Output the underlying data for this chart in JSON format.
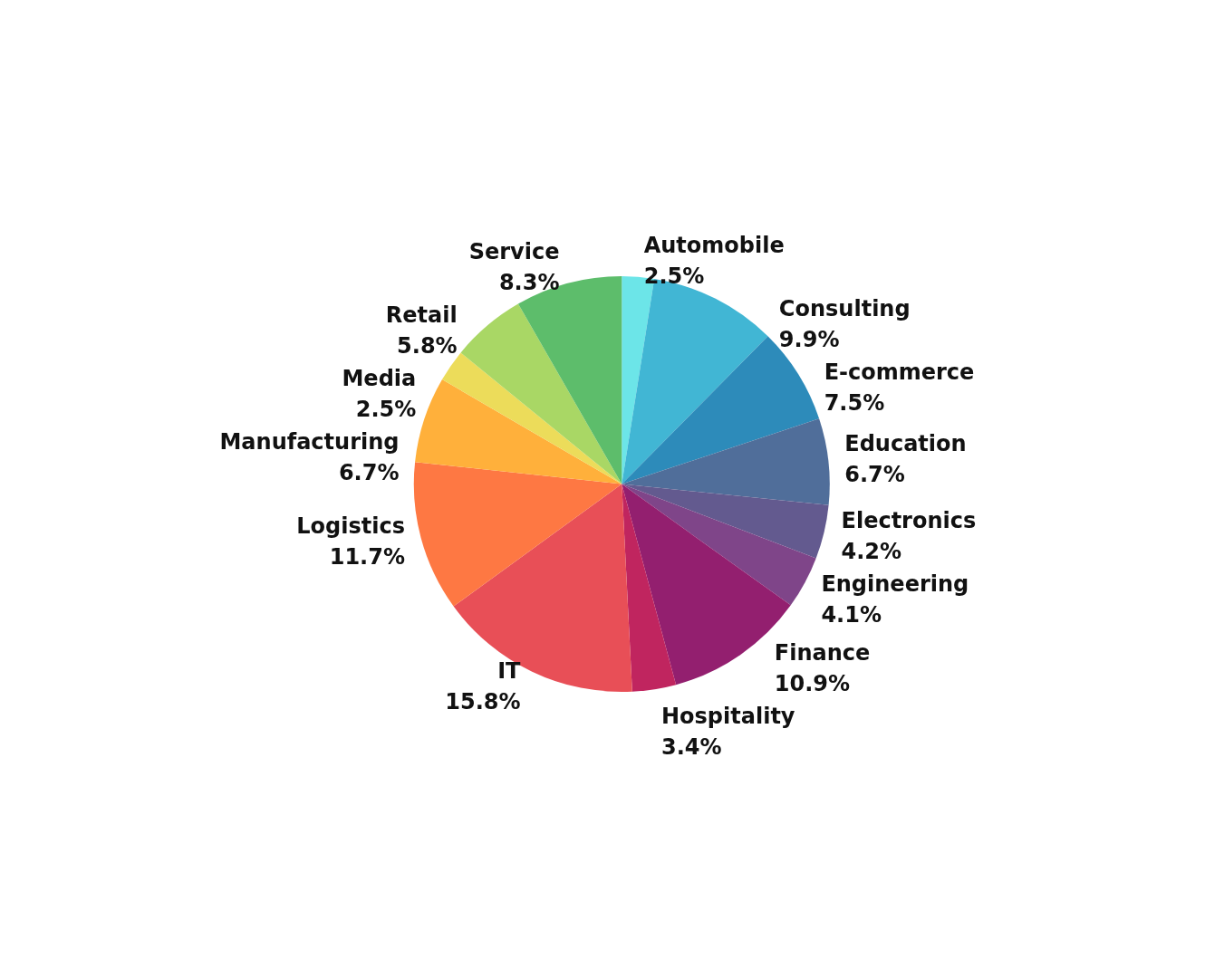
{
  "chart_data": {
    "type": "pie",
    "categories": [
      "Automobile",
      "Consulting",
      "E-commerce",
      "Education",
      "Electronics",
      "Engineering",
      "Finance",
      "Hospitality",
      "IT",
      "Logistics",
      "Manufacturing",
      "Media",
      "Retail",
      "Service"
    ],
    "values": [
      2.5,
      9.9,
      7.5,
      6.7,
      4.2,
      4.1,
      10.9,
      3.4,
      15.8,
      11.7,
      6.7,
      2.5,
      5.8,
      8.3
    ],
    "value_labels": [
      "2.5%",
      "9.9%",
      "7.5%",
      "6.7%",
      "4.2%",
      "4.1%",
      "10.9%",
      "3.4%",
      "15.8%",
      "11.7%",
      "6.7%",
      "2.5%",
      "5.8%",
      "8.3%"
    ],
    "colors": [
      "#6ce5e8",
      "#41b6d4",
      "#2d8bba",
      "#506e9a",
      "#635a8f",
      "#7f4589",
      "#931f6f",
      "#c0255f",
      "#e84f57",
      "#fe7843",
      "#ffb03b",
      "#ecdc5a",
      "#a9d765",
      "#5dbd6b"
    ],
    "legend": false
  }
}
